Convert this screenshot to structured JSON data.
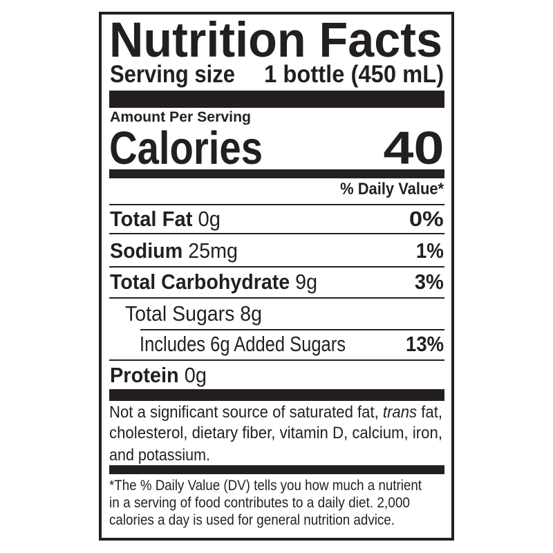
{
  "title": "Nutrition Facts",
  "serving": {
    "label": "Serving size",
    "value": "1 bottle (450 mL)"
  },
  "amount_per_serving": "Amount Per Serving",
  "calories": {
    "label": "Calories",
    "value": "40"
  },
  "daily_value_header": "% Daily Value*",
  "nutrients": [
    {
      "name": "Total Fat",
      "amount": "0g",
      "dv": "0%"
    },
    {
      "name": "Sodium",
      "amount": "25mg",
      "dv": "1%"
    },
    {
      "name": "Total Carbohydrate",
      "amount": "9g",
      "dv": "3%"
    },
    {
      "name": "Total Sugars 8g"
    },
    {
      "name": "Includes 6g Added Sugars",
      "dv": "13%"
    },
    {
      "name": "Protein",
      "amount": "0g"
    }
  ],
  "note": {
    "line1_a": "Not a significant source of saturated fat, ",
    "line1_italic": "trans",
    "line1_b": " fat,",
    "line2": "cholesterol, dietary fiber, vitamin D, calcium, iron,",
    "line3": "and potassium."
  },
  "footnote": {
    "line1": "*The % Daily Value (DV) tells you how much a nutrient",
    "line2": "in a serving of food contributes to a daily diet. 2,000",
    "line3": "calories a day is used for general nutrition advice."
  },
  "colors": {
    "ink": "#231f20",
    "background": "#ffffff"
  }
}
